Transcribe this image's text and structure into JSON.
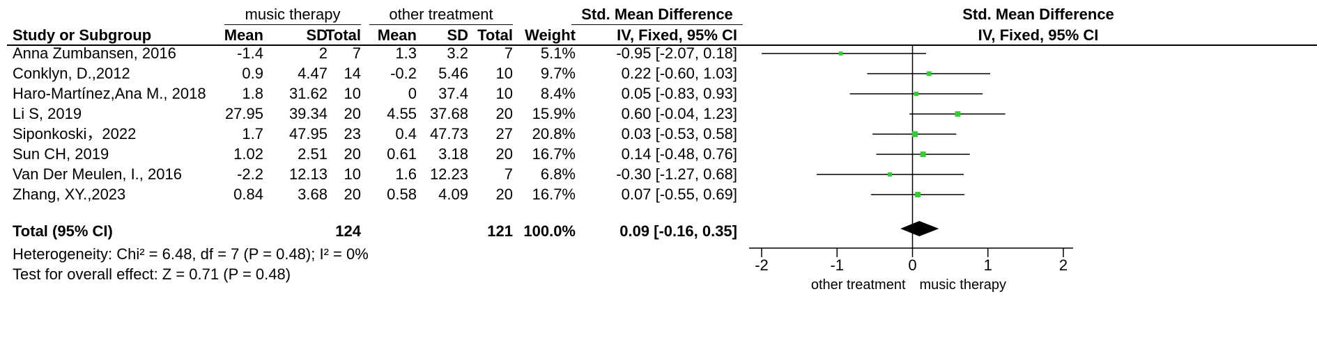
{
  "header": {
    "group1": "music therapy",
    "group2": "other treatment",
    "effect_title": "Std. Mean Difference",
    "effect_method": "IV, Fixed, 95% CI",
    "plot_title": "Std. Mean Difference",
    "plot_method": "IV, Fixed, 95% CI",
    "col_study": "Study or Subgroup",
    "col_mean1": "Mean",
    "col_sd1": "SD",
    "col_total1": "Total",
    "col_mean2": "Mean",
    "col_sd2": "SD",
    "col_total2": "Total",
    "col_weight": "Weight"
  },
  "rows": [
    {
      "study": "Anna Zumbansen, 2016",
      "mean1": "-1.4",
      "sd1": "2",
      "total1": "7",
      "mean2": "1.3",
      "sd2": "3.2",
      "total2": "7",
      "weight": "5.1%",
      "ci_text": "-0.95 [-2.07, 0.18]"
    },
    {
      "study": "Conklyn, D.,2012",
      "mean1": "0.9",
      "sd1": "4.47",
      "total1": "14",
      "mean2": "-0.2",
      "sd2": "5.46",
      "total2": "10",
      "weight": "9.7%",
      "ci_text": "0.22 [-0.60, 1.03]"
    },
    {
      "study": "Haro-Martínez,Ana M., 2018",
      "mean1": "1.8",
      "sd1": "31.62",
      "total1": "10",
      "mean2": "0",
      "sd2": "37.4",
      "total2": "10",
      "weight": "8.4%",
      "ci_text": "0.05 [-0.83, 0.93]"
    },
    {
      "study": "Li S, 2019",
      "mean1": "27.95",
      "sd1": "39.34",
      "total1": "20",
      "mean2": "4.55",
      "sd2": "37.68",
      "total2": "20",
      "weight": "15.9%",
      "ci_text": "0.60 [-0.04, 1.23]"
    },
    {
      "study": "Siponkoski，2022",
      "mean1": "1.7",
      "sd1": "47.95",
      "total1": "23",
      "mean2": "0.4",
      "sd2": "47.73",
      "total2": "27",
      "weight": "20.8%",
      "ci_text": "0.03 [-0.53, 0.58]"
    },
    {
      "study": "Sun CH, 2019",
      "mean1": "1.02",
      "sd1": "2.51",
      "total1": "20",
      "mean2": "0.61",
      "sd2": "3.18",
      "total2": "20",
      "weight": "16.7%",
      "ci_text": "0.14 [-0.48, 0.76]"
    },
    {
      "study": "Van Der Meulen, I., 2016",
      "mean1": "-2.2",
      "sd1": "12.13",
      "total1": "10",
      "mean2": "1.6",
      "sd2": "12.23",
      "total2": "7",
      "weight": "6.8%",
      "ci_text": "-0.30 [-1.27, 0.68]"
    },
    {
      "study": "Zhang, XY.,2023",
      "mean1": "0.84",
      "sd1": "3.68",
      "total1": "20",
      "mean2": "0.58",
      "sd2": "4.09",
      "total2": "20",
      "weight": "16.7%",
      "ci_text": "0.07 [-0.55, 0.69]"
    }
  ],
  "total": {
    "label": "Total (95% CI)",
    "total1": "124",
    "total2": "121",
    "weight": "100.0%",
    "ci_text": "0.09 [-0.16, 0.35]"
  },
  "footer": {
    "heterogeneity": "Heterogeneity: Chi² = 6.48, df = 7 (P = 0.48); I² = 0%",
    "overall": "Test for overall effect: Z = 0.71 (P = 0.48)"
  },
  "chart_data": {
    "type": "scatter",
    "xlim": [
      -2,
      2
    ],
    "xticks": [
      -2,
      -1,
      0,
      1,
      2
    ],
    "xtick_labels": [
      "-2",
      "-1",
      "0",
      "1",
      "2"
    ],
    "xlabel_left": "other treatment",
    "xlabel_right": "music therapy",
    "marker_color": "#33cc33",
    "studies": [
      {
        "name": "Anna Zumbansen, 2016",
        "est": -0.95,
        "lo": -2.07,
        "hi": 0.18,
        "weight": 5.1
      },
      {
        "name": "Conklyn, D.,2012",
        "est": 0.22,
        "lo": -0.6,
        "hi": 1.03,
        "weight": 9.7
      },
      {
        "name": "Haro-Martínez,Ana M., 2018",
        "est": 0.05,
        "lo": -0.83,
        "hi": 0.93,
        "weight": 8.4
      },
      {
        "name": "Li S, 2019",
        "est": 0.6,
        "lo": -0.04,
        "hi": 1.23,
        "weight": 15.9
      },
      {
        "name": "Siponkoski，2022",
        "est": 0.03,
        "lo": -0.53,
        "hi": 0.58,
        "weight": 20.8
      },
      {
        "name": "Sun CH, 2019",
        "est": 0.14,
        "lo": -0.48,
        "hi": 0.76,
        "weight": 16.7
      },
      {
        "name": "Van Der Meulen, I., 2016",
        "est": -0.3,
        "lo": -1.27,
        "hi": 0.68,
        "weight": 6.8
      },
      {
        "name": "Zhang, XY.,2023",
        "est": 0.07,
        "lo": -0.55,
        "hi": 0.69,
        "weight": 16.7
      }
    ],
    "pooled": {
      "est": 0.09,
      "lo": -0.16,
      "hi": 0.35
    }
  }
}
